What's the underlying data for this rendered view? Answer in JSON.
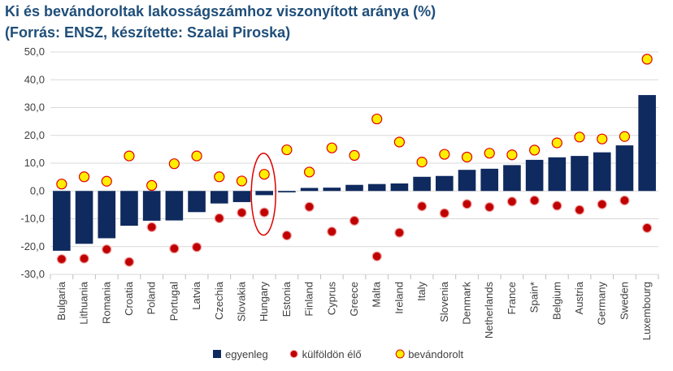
{
  "title": "Ki és bevándoroltak lakosságszámhoz viszonyított aránya (%)",
  "subtitle": "(Forrás: ENSZ, készítette: Szalai Piroska)",
  "chart_data": {
    "type": "bar",
    "categories": [
      "Bulgaria",
      "Lithuania",
      "Romania",
      "Croatia",
      "Poland",
      "Portugal",
      "Latvia",
      "Czechia",
      "Slovakia",
      "Hungary",
      "Estonia",
      "Finland",
      "Cyprus",
      "Greece",
      "Malta",
      "Ireland",
      "Italy",
      "Slovenia",
      "Denmark",
      "Netherlands",
      "France",
      "Spain*",
      "Belgium",
      "Austria",
      "Germany",
      "Sweden",
      "Luxembourg"
    ],
    "series": [
      {
        "name": "egyenleg",
        "kind": "bar",
        "color": "#0f2a5f",
        "values": [
          -21.5,
          -19,
          -17,
          -12.5,
          -10.7,
          -10.6,
          -7.6,
          -4.5,
          -4,
          -1.5,
          -0.5,
          1.1,
          1.2,
          2.2,
          2.5,
          2.7,
          5.1,
          5.4,
          7.6,
          8.0,
          9.3,
          11.2,
          12.1,
          12.6,
          13.9,
          16.4,
          34.5
        ]
      },
      {
        "name": "külföldön élő",
        "kind": "marker",
        "color": "#c00000",
        "values": [
          -24.5,
          -24.3,
          -21,
          -25.5,
          -13,
          -20.7,
          -20.2,
          -9.8,
          -7.8,
          -7.7,
          -16,
          -5.7,
          -14.6,
          -10.7,
          -23.5,
          -15,
          -5.5,
          -8,
          -4.7,
          -5.8,
          -3.8,
          -3.4,
          -5.3,
          -6.8,
          -4.8,
          -3.4,
          -13.3
        ]
      },
      {
        "name": "bevándorolt",
        "kind": "marker",
        "color": "#ffee00",
        "values": [
          2.5,
          5.1,
          3.5,
          12.6,
          2.0,
          9.8,
          12.6,
          5.1,
          3.6,
          6.0,
          14.8,
          6.8,
          15.5,
          12.8,
          25.9,
          17.6,
          10.4,
          13.2,
          12.2,
          13.6,
          13.0,
          14.7,
          17.3,
          19.4,
          18.7,
          19.6,
          47.4
        ]
      }
    ],
    "ylim": [
      -30,
      50
    ],
    "yticks": [
      "-30,0",
      "-20,0",
      "-10,0",
      "0,0",
      "10,0",
      "20,0",
      "30,0",
      "40,0",
      "50,0"
    ],
    "grid": true,
    "legend_position": "bottom",
    "highlight": "Hungary"
  }
}
